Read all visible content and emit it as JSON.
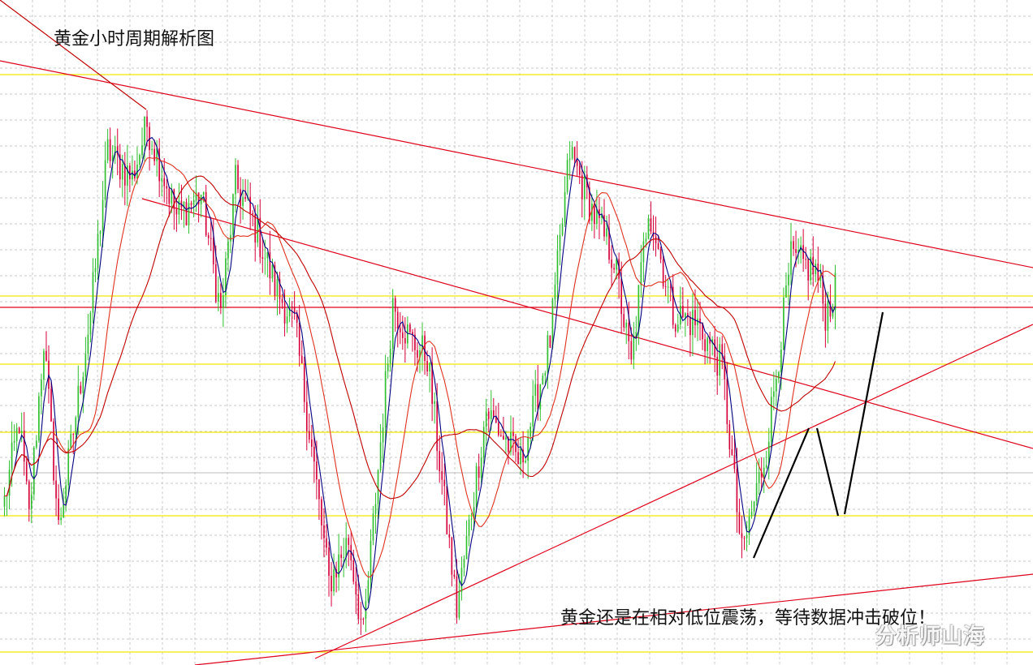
{
  "chart_data": {
    "type": "candlestick",
    "title": "黄金小时周期解析图",
    "annotation": "黄金还是在相对低位震荡，等待数据冲击破位！",
    "watermark": "分析师山海",
    "grid": true,
    "colors": {
      "up_candle": "#2fbf2f",
      "down_candle": "#d6003a",
      "horizontal_levels": "#f2e600",
      "resistance_level": "#e0001b",
      "trendlines": "#e0001b",
      "ma_fast": "#000080",
      "ma_mid": "#e0301e",
      "ma_slow": "#c00000",
      "projection": "#000000"
    },
    "price_path": [
      {
        "i": 0,
        "v": 0.25
      },
      {
        "i": 6,
        "v": 0.4
      },
      {
        "i": 10,
        "v": 0.22
      },
      {
        "i": 16,
        "v": 0.55
      },
      {
        "i": 22,
        "v": 0.2
      },
      {
        "i": 28,
        "v": 0.38
      },
      {
        "i": 35,
        "v": 0.6
      },
      {
        "i": 42,
        "v": 0.9
      },
      {
        "i": 52,
        "v": 0.85
      },
      {
        "i": 58,
        "v": 0.95
      },
      {
        "i": 70,
        "v": 0.78
      },
      {
        "i": 80,
        "v": 0.82
      },
      {
        "i": 88,
        "v": 0.6
      },
      {
        "i": 94,
        "v": 0.84
      },
      {
        "i": 102,
        "v": 0.76
      },
      {
        "i": 110,
        "v": 0.65
      },
      {
        "i": 118,
        "v": 0.58
      },
      {
        "i": 125,
        "v": 0.35
      },
      {
        "i": 132,
        "v": 0.1
      },
      {
        "i": 140,
        "v": 0.18
      },
      {
        "i": 146,
        "v": 0.0
      },
      {
        "i": 158,
        "v": 0.62
      },
      {
        "i": 165,
        "v": 0.55
      },
      {
        "i": 172,
        "v": 0.52
      },
      {
        "i": 184,
        "v": 0.05
      },
      {
        "i": 196,
        "v": 0.42
      },
      {
        "i": 210,
        "v": 0.32
      },
      {
        "i": 222,
        "v": 0.55
      },
      {
        "i": 230,
        "v": 0.9
      },
      {
        "i": 240,
        "v": 0.78
      },
      {
        "i": 248,
        "v": 0.7
      },
      {
        "i": 255,
        "v": 0.5
      },
      {
        "i": 262,
        "v": 0.8
      },
      {
        "i": 272,
        "v": 0.6
      },
      {
        "i": 282,
        "v": 0.58
      },
      {
        "i": 292,
        "v": 0.5
      },
      {
        "i": 300,
        "v": 0.15
      },
      {
        "i": 310,
        "v": 0.35
      },
      {
        "i": 320,
        "v": 0.7
      },
      {
        "i": 330,
        "v": 0.68
      },
      {
        "i": 334,
        "v": 0.6
      },
      {
        "i": 338,
        "v": 0.64
      }
    ]
  }
}
